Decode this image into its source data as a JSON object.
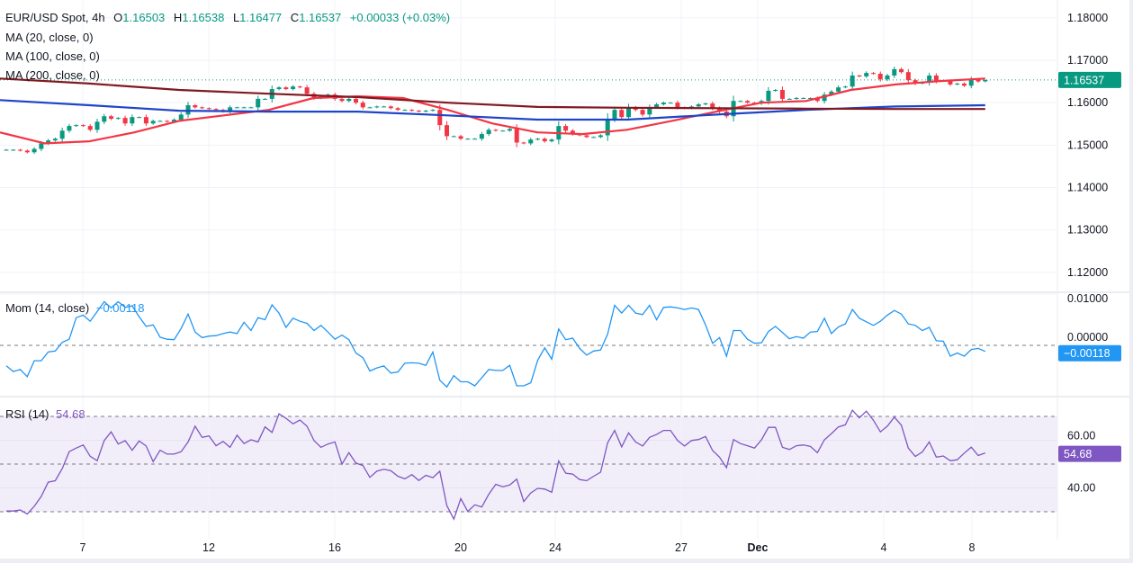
{
  "header": {
    "symbol": "EUR/USD Spot, 4h",
    "open_label": "O",
    "open": "1.16503",
    "high_label": "H",
    "high": "1.16538",
    "low_label": "L",
    "low": "1.16477",
    "close_label": "C",
    "close": "1.16537",
    "change": "+0.00033 (+0.03%)"
  },
  "legends": {
    "ma20": "MA (20, close, 0)",
    "ma100": "MA (100, close, 0)",
    "ma200": "MA (200, close, 0)",
    "mom": "Mom (14, close)",
    "mom_value": "−0.00118",
    "rsi": "RSI (14)",
    "rsi_value": "54.68"
  },
  "colors": {
    "up": "#089981",
    "down": "#f23645",
    "ma20": "#f23645",
    "ma100": "#1e45c8",
    "ma200": "#801922",
    "mom": "#2196f3",
    "rsi": "#7e57c2",
    "grid": "#f0f3fa"
  },
  "x_axis": {
    "ticks": [
      "7",
      "12",
      "16",
      "20",
      "24",
      "27",
      "Dec",
      "4",
      "8"
    ]
  },
  "chart_data": [
    {
      "type": "candlestick",
      "title": "EUR/USD Spot, 4h",
      "ylim": [
        1.1153,
        1.1842
      ],
      "y_ticks": [
        "1.18000",
        "1.17000",
        "1.16000",
        "1.15000",
        "1.14000",
        "1.13000",
        "1.12000"
      ],
      "last_price": "1.16537",
      "last_bar": {
        "open": 1.16503,
        "high": 1.16538,
        "low": 1.16477,
        "close": 1.16537
      },
      "close": [
        1.1489,
        1.1489,
        1.1487,
        1.1483,
        1.1491,
        1.1504,
        1.1511,
        1.1515,
        1.1534,
        1.1545,
        1.1547,
        1.1545,
        1.1536,
        1.1555,
        1.1568,
        1.1562,
        1.1564,
        1.1551,
        1.1566,
        1.1566,
        1.1551,
        1.1557,
        1.1557,
        1.1555,
        1.156,
        1.1572,
        1.1594,
        1.1589,
        1.1587,
        1.1585,
        1.1583,
        1.1579,
        1.1589,
        1.1589,
        1.1589,
        1.1589,
        1.1609,
        1.1609,
        1.1632,
        1.1636,
        1.1632,
        1.1638,
        1.1636,
        1.1621,
        1.1611,
        1.1615,
        1.1619,
        1.1609,
        1.1604,
        1.1609,
        1.16,
        1.1589,
        1.1589,
        1.1591,
        1.1591,
        1.1587,
        1.1583,
        1.1583,
        1.1581,
        1.1579,
        1.1581,
        1.1583,
        1.1547,
        1.1521,
        1.1521,
        1.1515,
        1.1515,
        1.1515,
        1.1526,
        1.1536,
        1.1534,
        1.1534,
        1.1538,
        1.1506,
        1.1504,
        1.1513,
        1.1515,
        1.1509,
        1.1513,
        1.1545,
        1.1534,
        1.1526,
        1.1523,
        1.1519,
        1.1519,
        1.1523,
        1.1562,
        1.1583,
        1.1566,
        1.1589,
        1.1583,
        1.1572,
        1.1589,
        1.1596,
        1.16,
        1.16,
        1.1589,
        1.1587,
        1.1591,
        1.1596,
        1.1598,
        1.1587,
        1.1579,
        1.1568,
        1.1604,
        1.1604,
        1.16,
        1.1598,
        1.1604,
        1.1628,
        1.163,
        1.1609,
        1.1609,
        1.1611,
        1.1611,
        1.1611,
        1.1604,
        1.1619,
        1.1626,
        1.1636,
        1.1638,
        1.1664,
        1.1662,
        1.167,
        1.1668,
        1.1655,
        1.1664,
        1.1679,
        1.1672,
        1.1653,
        1.1645,
        1.1647,
        1.1664,
        1.1651,
        1.1651,
        1.1643,
        1.1645,
        1.164,
        1.1655,
        1.165,
        1.16537
      ],
      "series": [
        {
          "name": "MA (20, close, 0)",
          "values": [
            1.153,
            1.1504,
            1.1509,
            1.153,
            1.1557,
            1.157,
            1.1583,
            1.1611,
            1.1615,
            1.1611,
            1.1583,
            1.1551,
            1.153,
            1.1526,
            1.1536,
            1.1557,
            1.1579,
            1.16,
            1.1604,
            1.163,
            1.1643,
            1.1651,
            1.1657
          ]
        },
        {
          "name": "MA (100, close, 0)",
          "values": [
            1.1606,
            1.1594,
            1.1581,
            1.1579,
            1.1579,
            1.157,
            1.156,
            1.156,
            1.1572,
            1.1583,
            1.1591,
            1.1594
          ]
        },
        {
          "name": "MA (200, close, 0)",
          "values": [
            1.1657,
            1.1645,
            1.163,
            1.1621,
            1.1613,
            1.16,
            1.159,
            1.1588,
            1.1587,
            1.1586,
            1.1585,
            1.1585
          ]
        }
      ]
    },
    {
      "type": "line",
      "title": "Mom (14, close)",
      "ylim": [
        -0.01,
        0.01035
      ],
      "y_ticks": [
        "0.01000",
        "0.00000"
      ],
      "reference": 0,
      "values": [
        -0.004,
        -0.0051,
        -0.0047,
        -0.0061,
        -0.003,
        -0.003,
        -0.0013,
        -0.0011,
        0.0006,
        0.0012,
        0.0054,
        0.0059,
        0.0047,
        0.0066,
        0.0085,
        0.0073,
        0.0085,
        0.0074,
        0.0077,
        0.0056,
        0.0037,
        0.004,
        0.0016,
        0.0012,
        0.0011,
        0.0033,
        0.0061,
        0.0026,
        0.0015,
        0.0018,
        0.0019,
        0.0023,
        0.0026,
        0.0023,
        0.0045,
        0.0029,
        0.0054,
        0.005,
        0.0079,
        0.0063,
        0.0035,
        0.0053,
        0.0047,
        0.0043,
        0.0029,
        0.0039,
        0.0026,
        0.0012,
        0.002,
        0.0011,
        -0.0015,
        -0.0024,
        -0.005,
        -0.0044,
        -0.004,
        -0.0054,
        -0.0052,
        -0.0035,
        -0.0034,
        -0.0035,
        -0.0039,
        -0.0013,
        -0.0068,
        -0.0081,
        -0.0059,
        -0.0071,
        -0.0071,
        -0.0079,
        -0.0063,
        -0.0047,
        -0.0049,
        -0.0049,
        -0.0039,
        -0.0079,
        -0.0079,
        -0.0073,
        -0.0029,
        -0.0005,
        -0.0027,
        0.0032,
        0.0011,
        0.0014,
        -0.0006,
        -0.0019,
        -0.0011,
        -0.0009,
        0.0022,
        0.0078,
        0.0063,
        0.0078,
        0.0063,
        0.006,
        0.0078,
        0.005,
        0.0074,
        0.0075,
        0.0073,
        0.007,
        0.0073,
        0.007,
        0.004,
        0.0004,
        0.0015,
        -0.0021,
        0.0029,
        0.0029,
        0.0012,
        0.0004,
        0.0005,
        0.0027,
        0.0037,
        0.0025,
        0.0013,
        0.0017,
        0.0014,
        0.0026,
        0.0027,
        0.0053,
        0.0023,
        0.0036,
        0.0042,
        0.007,
        0.0053,
        0.0046,
        0.0039,
        0.0047,
        0.0059,
        0.0068,
        0.0061,
        0.0042,
        0.0039,
        0.0029,
        0.0035,
        0.0009,
        0.0008,
        -0.0021,
        -0.0015,
        -0.0021,
        -0.0008,
        -0.0006,
        -0.00118
      ]
    },
    {
      "type": "line",
      "title": "RSI (14)",
      "ylim": [
        18.3,
        78.3
      ],
      "y_ticks": [
        "60.00",
        "40.00"
      ],
      "bands": [
        70,
        50,
        30
      ],
      "values": [
        30.3,
        30.3,
        30.7,
        29.0,
        32.3,
        36.4,
        42.4,
        43.0,
        48.1,
        55.2,
        56.7,
        58.0,
        53.3,
        51.4,
        59.9,
        63.5,
        58.4,
        59.8,
        55.8,
        59.7,
        57.6,
        51.0,
        55.8,
        54.2,
        54.2,
        55.2,
        59.3,
        65.9,
        61.2,
        61.8,
        57.7,
        59.5,
        57.0,
        62.1,
        58.6,
        60.2,
        59.3,
        65.6,
        63.3,
        71.1,
        69.2,
        66.9,
        68.5,
        65.9,
        59.9,
        57.0,
        58.4,
        59.3,
        50.0,
        54.8,
        50.4,
        49.4,
        44.4,
        47.0,
        47.8,
        47.2,
        44.9,
        43.8,
        45.6,
        43.1,
        45.3,
        44.3,
        47.0,
        32.6,
        26.9,
        35.5,
        30.1,
        32.9,
        32.0,
        37.3,
        41.5,
        40.5,
        41.2,
        43.7,
        34.3,
        37.9,
        39.8,
        39.5,
        38.2,
        51.3,
        46.2,
        45.8,
        43.5,
        43.0,
        44.9,
        46.6,
        58.9,
        64.1,
        57.2,
        63.1,
        59.3,
        57.6,
        61.2,
        62.4,
        64.1,
        64.1,
        59.9,
        57.6,
        59.9,
        60.3,
        61.6,
        55.7,
        52.9,
        48.5,
        60.3,
        58.6,
        57.7,
        56.7,
        60.2,
        65.4,
        65.4,
        57.0,
        56.1,
        57.7,
        58.0,
        57.4,
        54.8,
        60.2,
        62.8,
        65.6,
        66.5,
        72.6,
        69.4,
        72.2,
        68.4,
        63.5,
        65.9,
        69.7,
        66.3,
        56.7,
        53.2,
        55.1,
        59.3,
        52.9,
        53.4,
        51.4,
        51.8,
        54.6,
        57.1,
        53.6,
        54.68
      ]
    }
  ]
}
